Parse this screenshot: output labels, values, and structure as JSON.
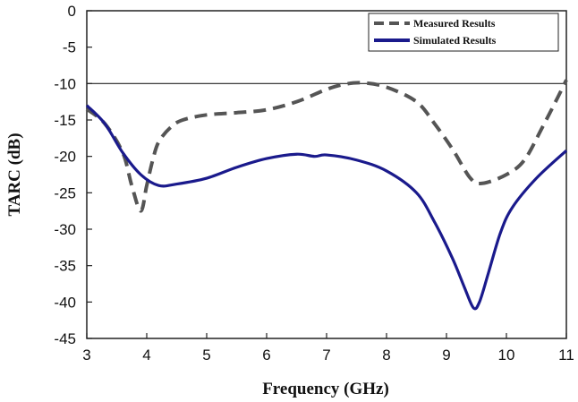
{
  "chart_data": {
    "type": "line",
    "title": "",
    "xlabel": "Frequency (GHz)",
    "ylabel": "TARC (dB)",
    "xlim": [
      3,
      11
    ],
    "ylim": [
      -45,
      0
    ],
    "xticks": [
      3,
      4,
      5,
      6,
      7,
      8,
      9,
      10,
      11
    ],
    "yticks": [
      0,
      -5,
      -10,
      -15,
      -20,
      -25,
      -30,
      -35,
      -40,
      -45
    ],
    "grid": false,
    "legend_position": "top-right",
    "reference_line": -10,
    "series": [
      {
        "name": "Measured Results",
        "style": "dashed",
        "color": "#555555",
        "points": [
          [
            3.0,
            -13.5
          ],
          [
            3.3,
            -15.5
          ],
          [
            3.6,
            -19.5
          ],
          [
            3.75,
            -24
          ],
          [
            3.9,
            -27.5
          ],
          [
            4.0,
            -24
          ],
          [
            4.1,
            -20.5
          ],
          [
            4.2,
            -18
          ],
          [
            4.4,
            -16
          ],
          [
            4.6,
            -15
          ],
          [
            5.0,
            -14.3
          ],
          [
            5.5,
            -14
          ],
          [
            6.0,
            -13.6
          ],
          [
            6.5,
            -12.5
          ],
          [
            7.0,
            -10.8
          ],
          [
            7.3,
            -10.1
          ],
          [
            7.6,
            -9.9
          ],
          [
            8.0,
            -10.5
          ],
          [
            8.5,
            -12.5
          ],
          [
            8.8,
            -15.5
          ],
          [
            9.1,
            -19
          ],
          [
            9.4,
            -23
          ],
          [
            9.6,
            -23.7
          ],
          [
            10.0,
            -22.5
          ],
          [
            10.3,
            -20.5
          ],
          [
            10.6,
            -16
          ],
          [
            10.85,
            -12
          ],
          [
            11.0,
            -9.5
          ]
        ]
      },
      {
        "name": "Simulated Results",
        "style": "solid",
        "color": "#1a1a8c",
        "points": [
          [
            3.0,
            -13.0
          ],
          [
            3.3,
            -15.5
          ],
          [
            3.6,
            -19.5
          ],
          [
            3.9,
            -22.5
          ],
          [
            4.2,
            -24
          ],
          [
            4.5,
            -23.8
          ],
          [
            5.0,
            -23
          ],
          [
            5.5,
            -21.5
          ],
          [
            6.0,
            -20.3
          ],
          [
            6.5,
            -19.7
          ],
          [
            6.8,
            -20
          ],
          [
            7.0,
            -19.8
          ],
          [
            7.5,
            -20.5
          ],
          [
            8.0,
            -22
          ],
          [
            8.5,
            -25
          ],
          [
            8.8,
            -29
          ],
          [
            9.1,
            -34
          ],
          [
            9.3,
            -38
          ],
          [
            9.45,
            -40.8
          ],
          [
            9.55,
            -40
          ],
          [
            9.7,
            -36
          ],
          [
            9.9,
            -30.5
          ],
          [
            10.1,
            -27
          ],
          [
            10.5,
            -23
          ],
          [
            11.0,
            -19.2
          ]
        ]
      }
    ]
  }
}
